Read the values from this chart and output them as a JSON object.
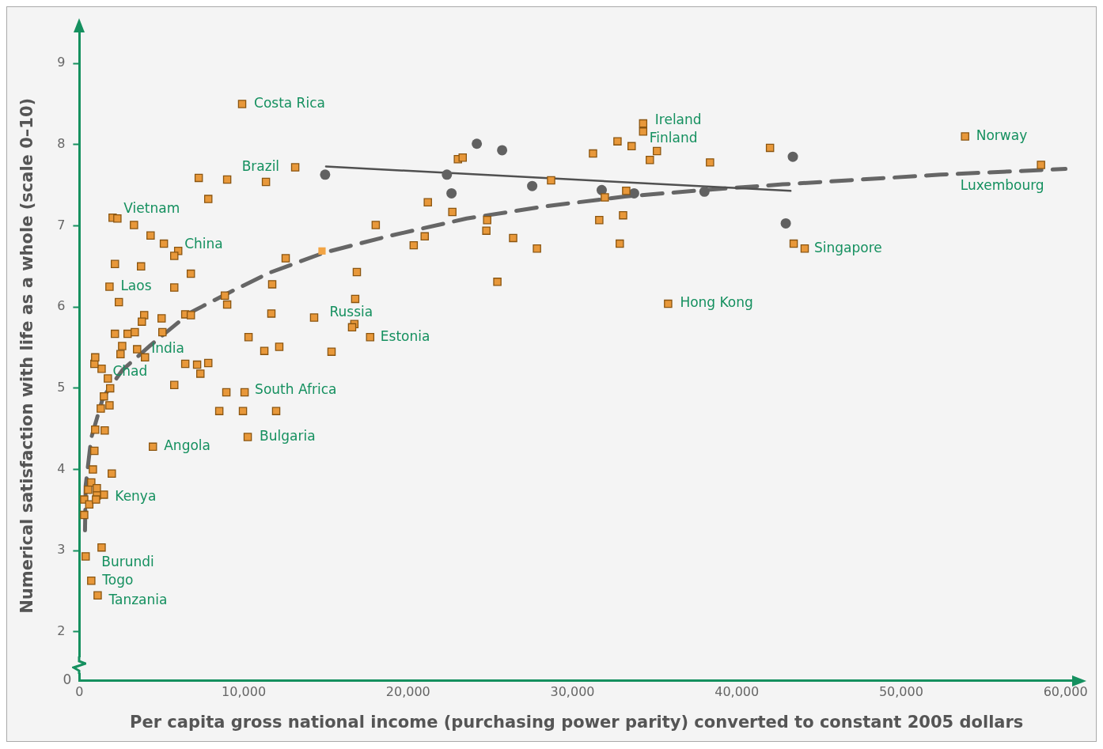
{
  "chart_data": {
    "type": "scatter",
    "xlabel": "Per capita gross national income (purchasing power parity) converted to constant 2005 dollars",
    "ylabel": "Numerical satisfaction with life as a whole (scale 0–10)",
    "xlim": [
      0,
      60500
    ],
    "ylim": [
      1.4,
      9.4
    ],
    "xticks": [
      0,
      {
        "value": 10000,
        "label": "10,000"
      },
      {
        "value": 20000,
        "label": "20,000"
      },
      {
        "value": 30000,
        "label": "30,000"
      },
      {
        "value": 40000,
        "label": "40,000"
      },
      {
        "value": 50000,
        "label": "50,000"
      },
      {
        "value": 60000,
        "label": "60,000"
      }
    ],
    "yticks": [
      2,
      3,
      4,
      5,
      6,
      7,
      8,
      9
    ],
    "grid": false,
    "legend": false,
    "series": [
      {
        "marker": "square",
        "color": "#e8983a",
        "x": [
          290,
          290,
          600,
          720,
          530,
          1060,
          1490,
          1060,
          1010,
          820,
          1970,
          910,
          960,
          1540,
          1300,
          1830,
          1490,
          1870,
          1730,
          1350,
          910,
          960,
          1350,
          380,
          720,
          1110,
          5770,
          4470,
          8940,
          8510,
          9950,
          10050,
          11970,
          10240,
          7260,
          8990,
          7840,
          2020,
          2310,
          3320,
          4330,
          5140,
          6010,
          5770,
          2160,
          3750,
          6780,
          1830,
          5770,
          2400,
          8850,
          8990,
          3940,
          3800,
          5000,
          6440,
          6780,
          2160,
          2930,
          3370,
          5050,
          2600,
          2500,
          3510,
          3990,
          6440,
          7160,
          7840,
          7360,
          9900,
          13130,
          11350,
          18030,
          20340,
          12550,
          16880,
          11730,
          16780,
          11680,
          14280,
          16730,
          16590,
          17690,
          10290,
          12160,
          11250,
          15340,
          23030,
          23320,
          21200,
          22690,
          21010,
          24810,
          24760,
          26390,
          27840,
          28700,
          25430,
          31250,
          32740,
          31970,
          31630,
          32880,
          34300,
          34300,
          33600,
          35140,
          34710,
          38370,
          42020,
          33270,
          33080,
          43460,
          44130,
          35820,
          53890,
          58510
        ],
        "values": [
          3.44,
          3.63,
          3.57,
          3.84,
          3.75,
          3.77,
          3.69,
          3.68,
          3.63,
          4.0,
          3.95,
          4.23,
          4.49,
          4.48,
          4.75,
          4.79,
          4.9,
          5.0,
          5.12,
          5.24,
          5.3,
          5.38,
          3.04,
          2.93,
          2.63,
          2.45,
          5.04,
          4.28,
          4.95,
          4.72,
          4.72,
          4.95,
          4.72,
          4.4,
          7.59,
          7.57,
          7.33,
          7.1,
          7.09,
          7.01,
          6.88,
          6.78,
          6.69,
          6.63,
          6.53,
          6.5,
          6.41,
          6.25,
          6.24,
          6.06,
          6.14,
          6.03,
          5.9,
          5.82,
          5.86,
          5.91,
          5.9,
          5.67,
          5.67,
          5.69,
          5.69,
          5.52,
          5.42,
          5.48,
          5.38,
          5.3,
          5.29,
          5.31,
          5.18,
          8.5,
          7.72,
          7.54,
          7.01,
          6.76,
          6.6,
          6.43,
          6.28,
          6.1,
          5.92,
          5.87,
          5.79,
          5.75,
          5.63,
          5.63,
          5.51,
          5.46,
          5.45,
          7.82,
          7.84,
          7.29,
          7.17,
          6.87,
          7.07,
          6.94,
          6.85,
          6.72,
          7.56,
          6.31,
          7.89,
          8.04,
          7.35,
          7.07,
          6.78,
          8.26,
          8.16,
          7.98,
          7.92,
          7.81,
          7.78,
          7.96,
          7.43,
          7.13,
          6.78,
          6.72,
          6.04,
          8.1,
          7.75
        ]
      },
      {
        "marker": "square",
        "color": "#f2a444",
        "x": [
          14760
        ],
        "values": [
          6.69
        ]
      },
      {
        "marker": "circle",
        "color": "#616161",
        "x": [
          14950,
          22360,
          22640,
          24180,
          25720,
          27550,
          31780,
          33750,
          38030,
          43410,
          42980
        ],
        "values": [
          7.63,
          7.63,
          7.4,
          8.01,
          7.93,
          7.49,
          7.44,
          7.4,
          7.42,
          7.85,
          7.03
        ]
      },
      {
        "type": "line",
        "marker": "none",
        "line_style": "solid",
        "color": "#505050",
        "x": [
          15000,
          43270
        ],
        "values": [
          7.73,
          7.43
        ]
      },
      {
        "type": "line",
        "marker": "none",
        "line_style": "dashed",
        "color": "#666666",
        "x": [
          340,
          380,
          720,
          1440,
          2640,
          4330,
          6730,
          9130,
          11540,
          14900,
          18750,
          23560,
          28370,
          33170,
          37980,
          42790,
          47600,
          52400,
          60000
        ],
        "values": [
          3.25,
          3.8,
          4.39,
          4.89,
          5.23,
          5.53,
          5.93,
          6.18,
          6.42,
          6.67,
          6.87,
          7.09,
          7.24,
          7.36,
          7.44,
          7.51,
          7.57,
          7.63,
          7.7
        ]
      }
    ],
    "annotations": [
      {
        "text": "Costa Rica",
        "x": 9900,
        "y": 8.5
      },
      {
        "text": "Brazil",
        "x": 13130,
        "y": 7.72
      },
      {
        "text": "Vietnam",
        "x": 2310,
        "y": 7.09
      },
      {
        "text": "China",
        "x": 6010,
        "y": 6.69
      },
      {
        "text": "Laos",
        "x": 1830,
        "y": 6.25
      },
      {
        "text": "India",
        "x": 3990,
        "y": 5.38
      },
      {
        "text": "Chad",
        "x": 1350,
        "y": 5.24
      },
      {
        "text": "Angola",
        "x": 4470,
        "y": 4.28
      },
      {
        "text": "Kenya",
        "x": 1490,
        "y": 3.69
      },
      {
        "text": "Burundi",
        "x": 380,
        "y": 2.93
      },
      {
        "text": "Togo",
        "x": 720,
        "y": 2.63
      },
      {
        "text": "Tanzania",
        "x": 1110,
        "y": 2.45
      },
      {
        "text": "Russia",
        "x": 16730,
        "y": 5.79
      },
      {
        "text": "Estonia",
        "x": 17690,
        "y": 5.63
      },
      {
        "text": "South Africa",
        "x": 10050,
        "y": 4.95
      },
      {
        "text": "Bulgaria",
        "x": 10240,
        "y": 4.4
      },
      {
        "text": "Ireland",
        "x": 34300,
        "y": 8.26
      },
      {
        "text": "Finland",
        "x": 34300,
        "y": 8.16
      },
      {
        "text": "Norway",
        "x": 53890,
        "y": 8.1
      },
      {
        "text": "Luxembourg",
        "x": 58510,
        "y": 7.75
      },
      {
        "text": "Singapore",
        "x": 44130,
        "y": 6.72
      },
      {
        "text": "Hong Kong",
        "x": 35820,
        "y": 6.04
      },
      "0"
    ]
  }
}
